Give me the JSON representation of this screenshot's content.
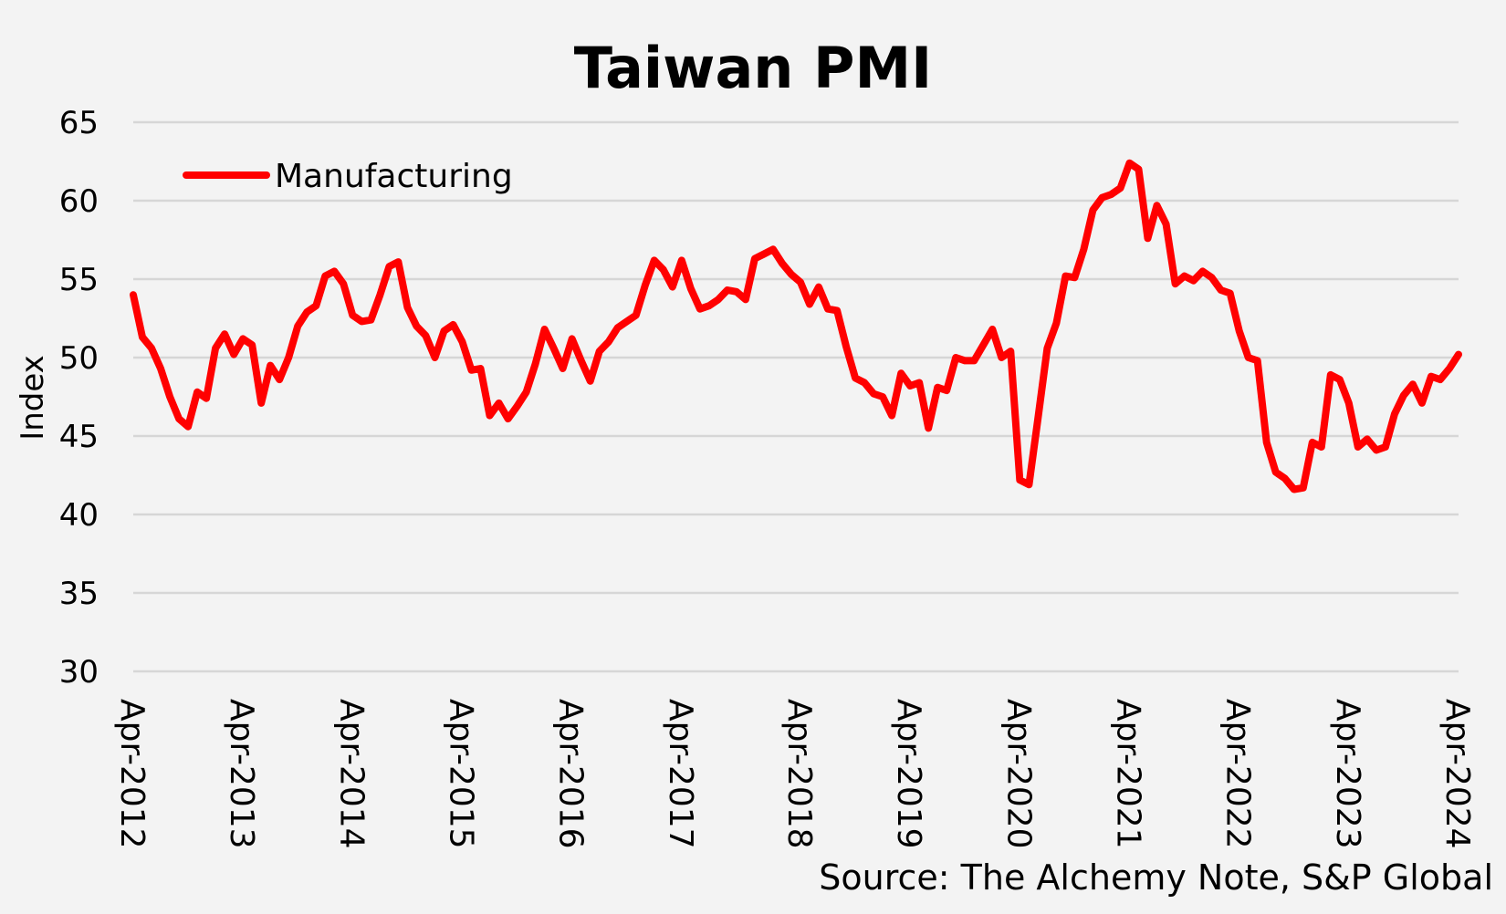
{
  "chart_data": {
    "type": "line",
    "title": "Taiwan PMI",
    "ylabel": "Index",
    "xlabel": "",
    "ylim": [
      30,
      65
    ],
    "yticks": [
      30,
      35,
      40,
      45,
      50,
      55,
      60,
      65
    ],
    "grid": "horizontal",
    "legend_position": "top-left",
    "source": "Source: The Alchemy Note, S&P Global",
    "line_color": "#ff0000",
    "x_start": "Apr-2012",
    "x_end": "Apr-2024",
    "x_tick_labels": [
      "Apr-2012",
      "Apr-2013",
      "Apr-2014",
      "Apr-2015",
      "Apr-2016",
      "Apr-2017",
      "Apr-2018",
      "Apr-2019",
      "Apr-2020",
      "Apr-2021",
      "Apr-2022",
      "Apr-2023",
      "Apr-2024"
    ],
    "series": [
      {
        "name": "Manufacturing",
        "color": "#ff0000",
        "values": [
          54.0,
          51.3,
          50.6,
          49.3,
          47.5,
          46.1,
          45.6,
          47.8,
          47.4,
          50.6,
          51.5,
          50.2,
          51.2,
          50.8,
          47.1,
          49.5,
          48.6,
          50.0,
          52.0,
          52.9,
          53.3,
          55.2,
          55.5,
          54.7,
          52.7,
          52.3,
          52.4,
          54.0,
          55.8,
          56.1,
          53.2,
          52.0,
          51.4,
          50.0,
          51.7,
          52.1,
          51.0,
          49.2,
          49.3,
          46.3,
          47.1,
          46.1,
          46.9,
          47.8,
          49.6,
          51.8,
          50.6,
          49.3,
          51.2,
          49.8,
          48.5,
          50.4,
          51.0,
          51.9,
          52.3,
          52.7,
          54.6,
          56.2,
          55.6,
          54.5,
          56.2,
          54.4,
          53.1,
          53.3,
          53.7,
          54.3,
          54.2,
          53.7,
          56.3,
          56.6,
          56.9,
          56.0,
          55.3,
          54.8,
          53.4,
          54.5,
          53.1,
          53.0,
          50.7,
          48.7,
          48.4,
          47.7,
          47.5,
          46.3,
          49.0,
          48.2,
          48.4,
          45.5,
          48.1,
          47.9,
          50.0,
          49.8,
          49.8,
          50.8,
          51.8,
          50.0,
          50.4,
          42.2,
          41.9,
          46.2,
          50.6,
          52.2,
          55.2,
          55.1,
          56.9,
          59.4,
          60.2,
          60.4,
          60.8,
          62.4,
          62.0,
          57.6,
          59.7,
          58.5,
          54.7,
          55.2,
          54.9,
          55.5,
          55.1,
          54.3,
          54.1,
          51.7,
          50.0,
          49.8,
          44.6,
          42.7,
          42.3,
          41.6,
          41.7,
          44.6,
          44.3,
          48.9,
          48.6,
          47.1,
          44.3,
          44.8,
          44.1,
          44.3,
          46.4,
          47.6,
          48.3,
          47.1,
          48.8,
          48.6,
          49.3,
          50.2
        ]
      }
    ]
  }
}
